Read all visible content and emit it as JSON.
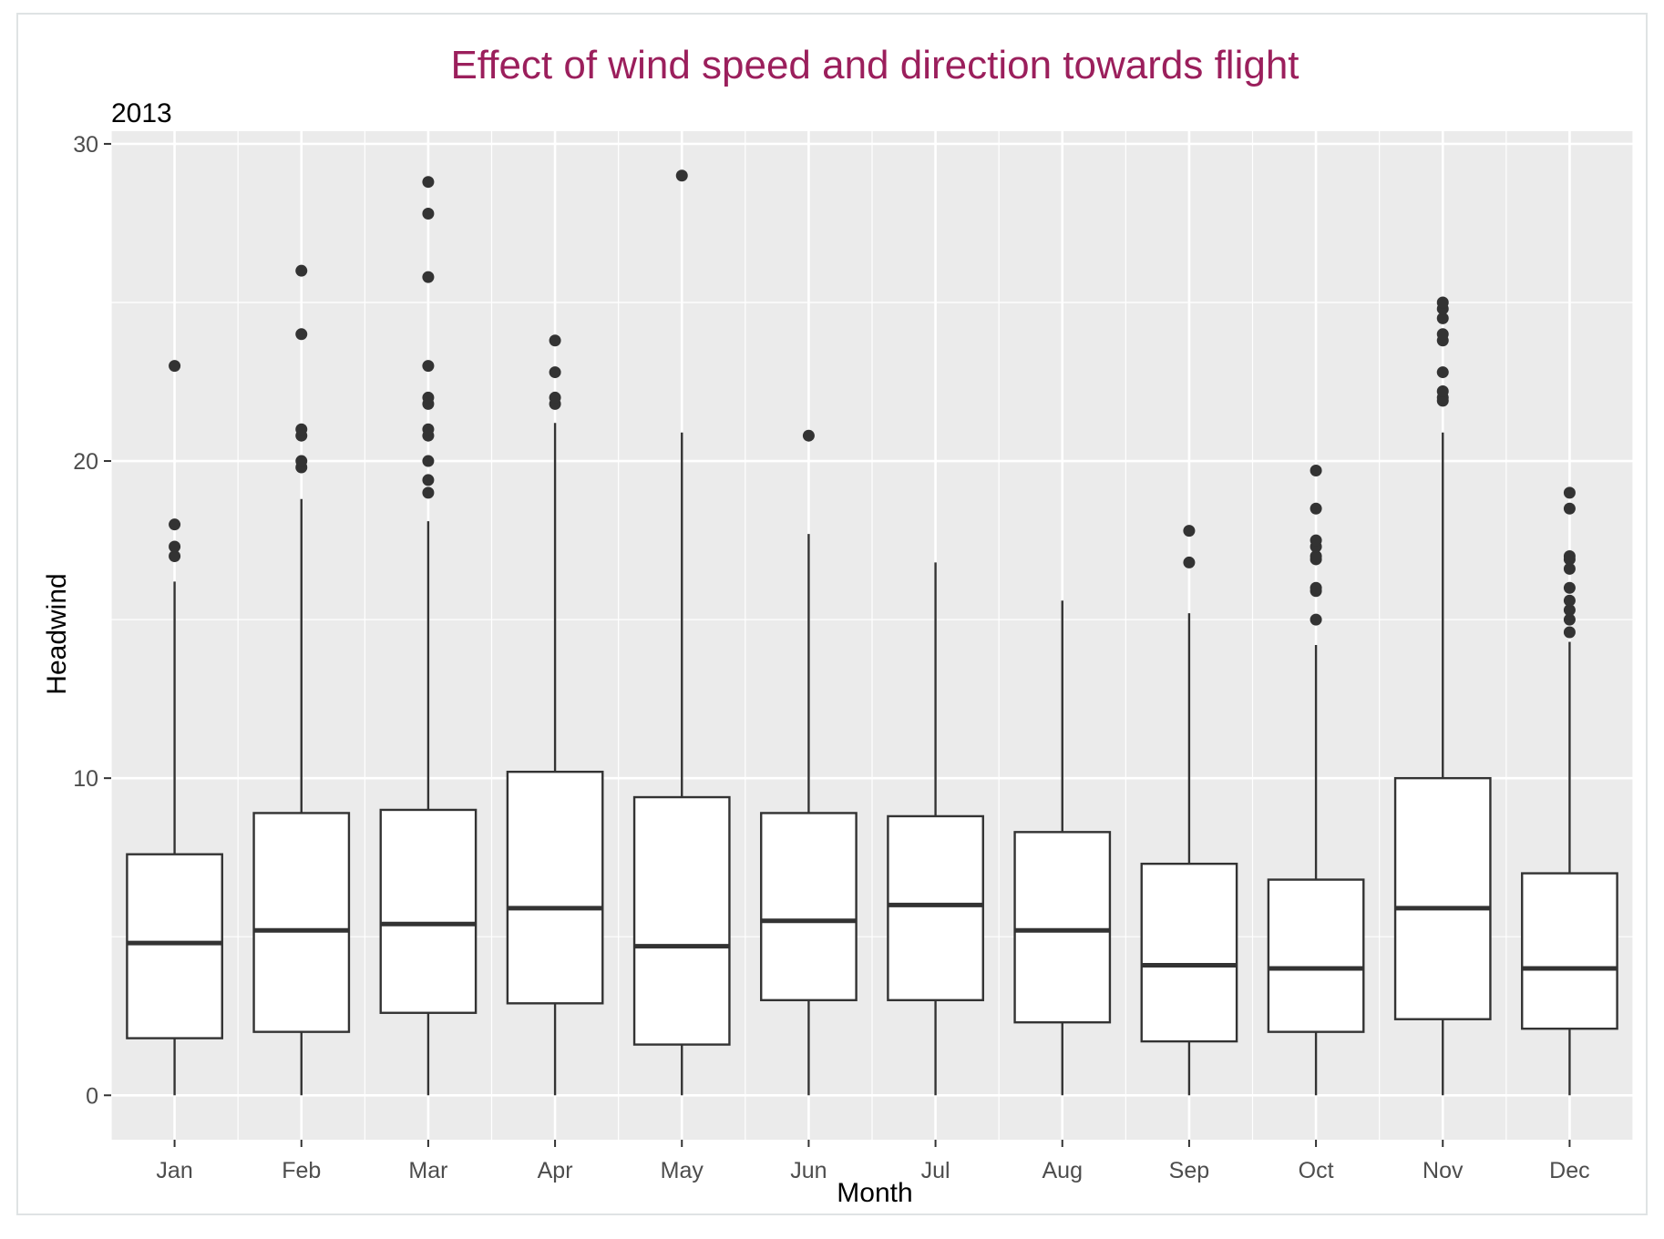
{
  "chart_data": {
    "type": "boxplot",
    "title": "Effect of wind speed and direction towards flight",
    "subtitle": "2013",
    "xlabel": "Month",
    "ylabel": "Headwind",
    "ylim": [
      -1.4,
      30.4
    ],
    "yticks": [
      0,
      10,
      20,
      30
    ],
    "grid": true,
    "legend": "none",
    "colors": {
      "title": "#9b1f5c",
      "panel": "#ebebeb",
      "grid": "#ffffff",
      "box_fill": "#ffffff",
      "box_line": "#333333",
      "outlier": "#333333",
      "tick_text": "#4d4d4d"
    },
    "categories": [
      "Jan",
      "Feb",
      "Mar",
      "Apr",
      "May",
      "Jun",
      "Jul",
      "Aug",
      "Sep",
      "Oct",
      "Nov",
      "Dec"
    ],
    "boxes": [
      {
        "month": "Jan",
        "lower_whisker": 0,
        "q1": 1.8,
        "median": 4.8,
        "q3": 7.6,
        "upper_whisker": 16.2,
        "outliers": [
          17.0,
          17.3,
          18.0,
          23.0
        ]
      },
      {
        "month": "Feb",
        "lower_whisker": 0,
        "q1": 2.0,
        "median": 5.2,
        "q3": 8.9,
        "upper_whisker": 18.8,
        "outliers": [
          19.8,
          20.0,
          20.8,
          21.0,
          24.0,
          26.0
        ]
      },
      {
        "month": "Mar",
        "lower_whisker": 0,
        "q1": 2.6,
        "median": 5.4,
        "q3": 9.0,
        "upper_whisker": 18.1,
        "outliers": [
          19.0,
          19.4,
          20.0,
          20.8,
          21.0,
          21.8,
          22.0,
          23.0,
          25.8,
          27.8,
          28.8
        ]
      },
      {
        "month": "Apr",
        "lower_whisker": 0,
        "q1": 2.9,
        "median": 5.9,
        "q3": 10.2,
        "upper_whisker": 21.2,
        "outliers": [
          21.8,
          22.0,
          22.8,
          23.8
        ]
      },
      {
        "month": "May",
        "lower_whisker": 0,
        "q1": 1.6,
        "median": 4.7,
        "q3": 9.4,
        "upper_whisker": 20.9,
        "outliers": [
          29.0
        ]
      },
      {
        "month": "Jun",
        "lower_whisker": 0,
        "q1": 3.0,
        "median": 5.5,
        "q3": 8.9,
        "upper_whisker": 17.7,
        "outliers": [
          20.8
        ]
      },
      {
        "month": "Jul",
        "lower_whisker": 0,
        "q1": 3.0,
        "median": 6.0,
        "q3": 8.8,
        "upper_whisker": 16.8,
        "outliers": []
      },
      {
        "month": "Aug",
        "lower_whisker": 0,
        "q1": 2.3,
        "median": 5.2,
        "q3": 8.3,
        "upper_whisker": 15.6,
        "outliers": []
      },
      {
        "month": "Sep",
        "lower_whisker": 0,
        "q1": 1.7,
        "median": 4.1,
        "q3": 7.3,
        "upper_whisker": 15.2,
        "outliers": [
          16.8,
          17.8
        ]
      },
      {
        "month": "Oct",
        "lower_whisker": 0,
        "q1": 2.0,
        "median": 4.0,
        "q3": 6.8,
        "upper_whisker": 14.2,
        "outliers": [
          15.0,
          15.9,
          16.0,
          16.9,
          17.0,
          17.3,
          17.5,
          18.5,
          19.7
        ]
      },
      {
        "month": "Nov",
        "lower_whisker": 0,
        "q1": 2.4,
        "median": 5.9,
        "q3": 10.0,
        "upper_whisker": 20.9,
        "outliers": [
          21.9,
          22.0,
          22.2,
          22.8,
          23.8,
          24.0,
          24.5,
          24.8,
          25.0
        ]
      },
      {
        "month": "Dec",
        "lower_whisker": 0,
        "q1": 2.1,
        "median": 4.0,
        "q3": 7.0,
        "upper_whisker": 14.3,
        "outliers": [
          14.6,
          15.0,
          15.3,
          15.6,
          16.0,
          16.6,
          16.9,
          17.0,
          18.5,
          19.0
        ]
      }
    ]
  }
}
